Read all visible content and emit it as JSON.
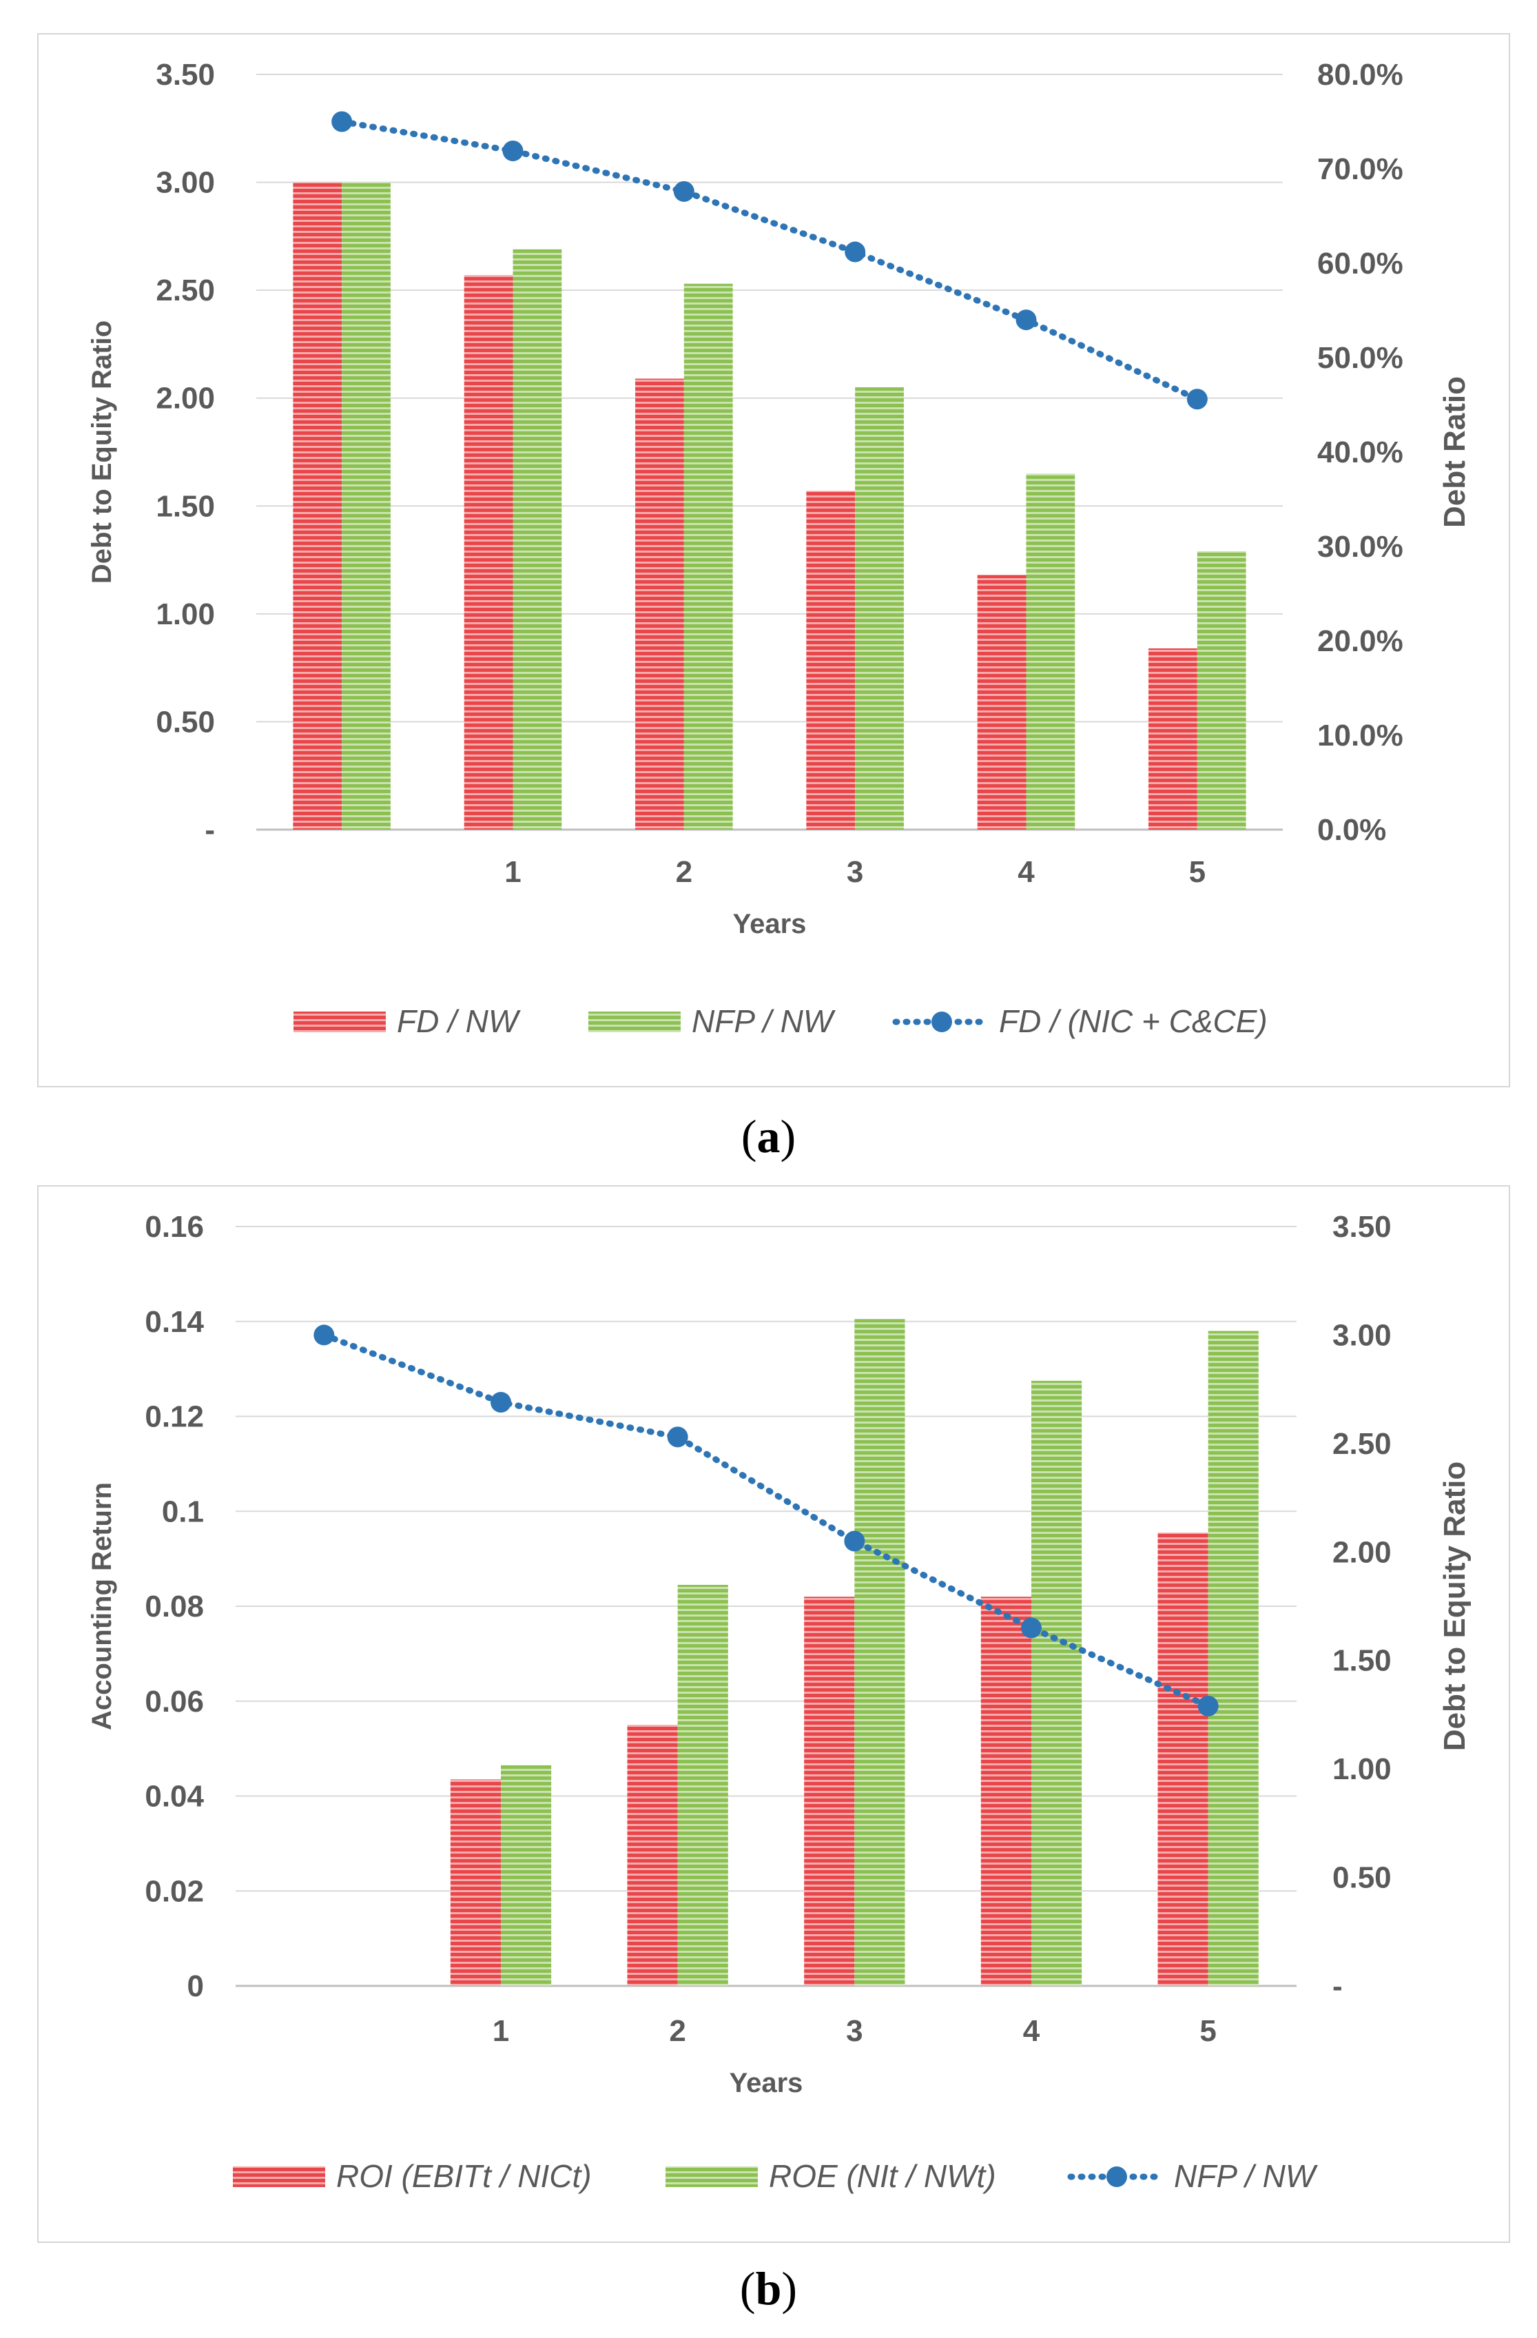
{
  "chart_data": [
    {
      "type": "bar",
      "caption_label": "a",
      "categories": [
        "",
        "1",
        "2",
        "3",
        "4",
        "5"
      ],
      "xlabel": "Years",
      "ylabel": "Debt to Equity Ratio",
      "ylabel_right": "Debt Ratio",
      "ylim": [
        0,
        3.5
      ],
      "ylim_right": [
        0,
        0.8
      ],
      "yticks": [
        "-",
        "0.50",
        "1.00",
        "1.50",
        "2.00",
        "2.50",
        "3.00",
        "3.50"
      ],
      "yticks_right": [
        "0.0%",
        "10.0%",
        "20.0%",
        "30.0%",
        "40.0%",
        "50.0%",
        "60.0%",
        "70.0%",
        "80.0%"
      ],
      "grid": true,
      "legend_position": "bottom",
      "series": [
        {
          "name": "FD / NW",
          "kind": "bar",
          "axis": "left",
          "color": "#e8464a",
          "values": [
            3.0,
            2.57,
            2.09,
            1.57,
            1.18,
            0.84
          ]
        },
        {
          "name": "NFP / NW",
          "kind": "bar",
          "axis": "left",
          "color": "#8cc152",
          "values": [
            3.0,
            2.69,
            2.53,
            2.05,
            1.65,
            1.29
          ]
        },
        {
          "name": "FD / (NIC + C&CE)",
          "kind": "line",
          "axis": "right",
          "color": "#2e75b6",
          "style": "dotted",
          "values": [
            0.75,
            0.719,
            0.676,
            0.612,
            0.54,
            0.456
          ]
        }
      ]
    },
    {
      "type": "bar",
      "caption_label": "b",
      "categories": [
        "",
        "1",
        "2",
        "3",
        "4",
        "5"
      ],
      "xlabel": "Years",
      "ylabel": "Accounting Return",
      "ylabel_right": "Debt to Equity Ratio",
      "ylim": [
        0,
        0.16
      ],
      "ylim_right": [
        0,
        3.5
      ],
      "yticks": [
        "0",
        "0.02",
        "0.04",
        "0.06",
        "0.08",
        "0.1",
        "0.12",
        "0.14",
        "0.16"
      ],
      "yticks_right": [
        "-",
        "0.50",
        "1.00",
        "1.50",
        "2.00",
        "2.50",
        "3.00",
        "3.50"
      ],
      "grid": true,
      "legend_position": "bottom",
      "series": [
        {
          "name": "ROI (EBITt / NICt)",
          "kind": "bar",
          "axis": "left",
          "color": "#e8464a",
          "values": [
            0,
            0.0435,
            0.055,
            0.082,
            0.082,
            0.0955
          ]
        },
        {
          "name": "ROE (NIt / NWt)",
          "kind": "bar",
          "axis": "left",
          "color": "#8cc152",
          "values": [
            0,
            0.0465,
            0.0845,
            0.1405,
            0.1275,
            0.138
          ]
        },
        {
          "name": "NFP / NW",
          "kind": "line",
          "axis": "right",
          "color": "#2e75b6",
          "style": "dotted",
          "values": [
            3.0,
            2.69,
            2.53,
            2.05,
            1.65,
            1.29
          ]
        }
      ]
    }
  ]
}
